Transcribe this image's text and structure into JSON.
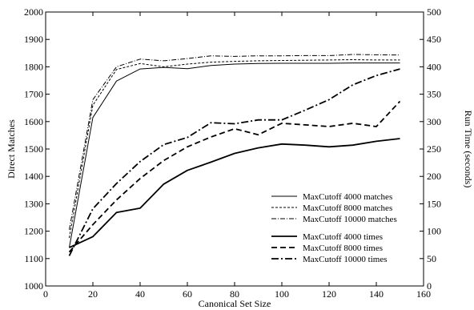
{
  "chart_data": {
    "type": "line",
    "title": "",
    "xlabel": "Canonical Set Size",
    "ylabel_left": "Direct Matches",
    "ylabel_right": "Run Time (seconds)",
    "xlim": [
      0,
      160
    ],
    "ylim_left": [
      1000,
      2000
    ],
    "ylim_right": [
      0,
      500
    ],
    "x_ticks": [
      0,
      20,
      40,
      60,
      80,
      100,
      120,
      140,
      160
    ],
    "y_ticks_left": [
      1000,
      1100,
      1200,
      1300,
      1400,
      1500,
      1600,
      1700,
      1800,
      1900,
      2000
    ],
    "y_ticks_right": [
      0,
      50,
      100,
      150,
      200,
      250,
      300,
      350,
      400,
      450,
      500
    ],
    "grid": false,
    "legend_position": "right-center",
    "x": [
      10,
      20,
      30,
      40,
      50,
      60,
      70,
      80,
      90,
      100,
      110,
      120,
      130,
      140,
      150
    ],
    "series": [
      {
        "name": "MaxCutoff 4000 matches",
        "axis": "left",
        "style": "solid-thin",
        "values": [
          1140,
          1615,
          1748,
          1792,
          1798,
          1793,
          1805,
          1810,
          1812,
          1813,
          1813,
          1813,
          1814,
          1814,
          1814
        ]
      },
      {
        "name": "MaxCutoff 8000 matches",
        "axis": "left",
        "style": "dashed-thin",
        "values": [
          1175,
          1660,
          1790,
          1812,
          1800,
          1810,
          1817,
          1820,
          1822,
          1823,
          1824,
          1825,
          1826,
          1825,
          1825
        ]
      },
      {
        "name": "MaxCutoff 10000 matches",
        "axis": "left",
        "style": "dashdot-thin",
        "values": [
          1205,
          1680,
          1800,
          1828,
          1822,
          1830,
          1840,
          1838,
          1840,
          1840,
          1841,
          1841,
          1845,
          1844,
          1843
        ]
      },
      {
        "name": "MaxCutoff 4000 times",
        "axis": "right",
        "style": "solid-thick",
        "values": [
          70,
          90,
          134,
          142,
          186,
          211,
          226,
          242,
          252,
          259,
          257,
          254,
          257,
          264,
          269
        ]
      },
      {
        "name": "MaxCutoff 8000 times",
        "axis": "right",
        "style": "dashed-thick",
        "values": [
          62,
          112,
          157,
          196,
          229,
          254,
          272,
          287,
          276,
          297,
          294,
          291,
          297,
          291,
          337
        ]
      },
      {
        "name": "MaxCutoff 10000 times",
        "axis": "right",
        "style": "dashdot-thick",
        "values": [
          55,
          141,
          187,
          227,
          258,
          271,
          298,
          296,
          303,
          303,
          321,
          340,
          367,
          384,
          396
        ]
      }
    ]
  }
}
